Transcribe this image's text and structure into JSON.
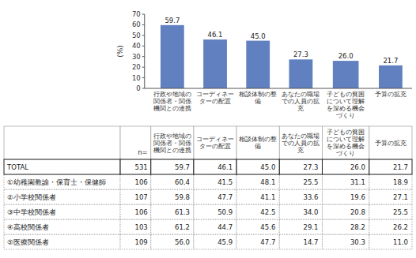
{
  "chart_data": {
    "type": "bar",
    "categories": [
      "行政や地域の\n関係者・関係\n機関との連携",
      "コーディネー\nターの配置",
      "相談体制の整\n備",
      "あなたの職場\nでの人員の拡\n充",
      "子どもの貧困\nについて理解\nを深める機会\nづくり",
      "予算の拡充"
    ],
    "values": [
      59.7,
      46.1,
      45.0,
      27.3,
      26.0,
      21.7
    ],
    "value_labels": [
      "59.7",
      "46.1",
      "45.0",
      "27.3",
      "26.0",
      "21.7"
    ],
    "data_labels": true,
    "color": "#6080c0",
    "ylim": [
      0,
      70
    ],
    "yticks": [
      0,
      10,
      20,
      30,
      40,
      50,
      60,
      70
    ],
    "ylabel": "(%)",
    "table": {
      "n_label": "n=",
      "rows": [
        {
          "label": "TOTAL",
          "n": 531,
          "values": [
            59.7,
            46.1,
            45.0,
            27.3,
            26.0,
            21.7
          ],
          "value_labels": [
            "59.7",
            "46.1",
            "45.0",
            "27.3",
            "26.0",
            "21.7"
          ]
        },
        {
          "label": "①幼稚園教諭・保育士・保健師",
          "n": 106,
          "values": [
            60.4,
            41.5,
            48.1,
            25.5,
            31.1,
            18.9
          ],
          "value_labels": [
            "60.4",
            "41.5",
            "48.1",
            "25.5",
            "31.1",
            "18.9"
          ]
        },
        {
          "label": "②小学校関係者",
          "n": 107,
          "values": [
            59.8,
            47.7,
            41.1,
            33.6,
            19.6,
            27.1
          ],
          "value_labels": [
            "59.8",
            "47.7",
            "41.1",
            "33.6",
            "19.6",
            "27.1"
          ]
        },
        {
          "label": "③中学校関係者",
          "n": 106,
          "values": [
            61.3,
            50.9,
            42.5,
            34.0,
            20.8,
            25.5
          ],
          "value_labels": [
            "61.3",
            "50.9",
            "42.5",
            "34.0",
            "20.8",
            "25.5"
          ]
        },
        {
          "label": "④高校関係者",
          "n": 103,
          "values": [
            61.2,
            44.7,
            45.6,
            29.1,
            28.2,
            26.2
          ],
          "value_labels": [
            "61.2",
            "44.7",
            "45.6",
            "29.1",
            "28.2",
            "26.2"
          ]
        },
        {
          "label": "⑤医療関係者",
          "n": 109,
          "values": [
            56.0,
            45.9,
            47.7,
            14.7,
            30.3,
            11.0
          ],
          "value_labels": [
            "56.0",
            "45.9",
            "47.7",
            "14.7",
            "30.3",
            "11.0"
          ]
        }
      ]
    }
  }
}
